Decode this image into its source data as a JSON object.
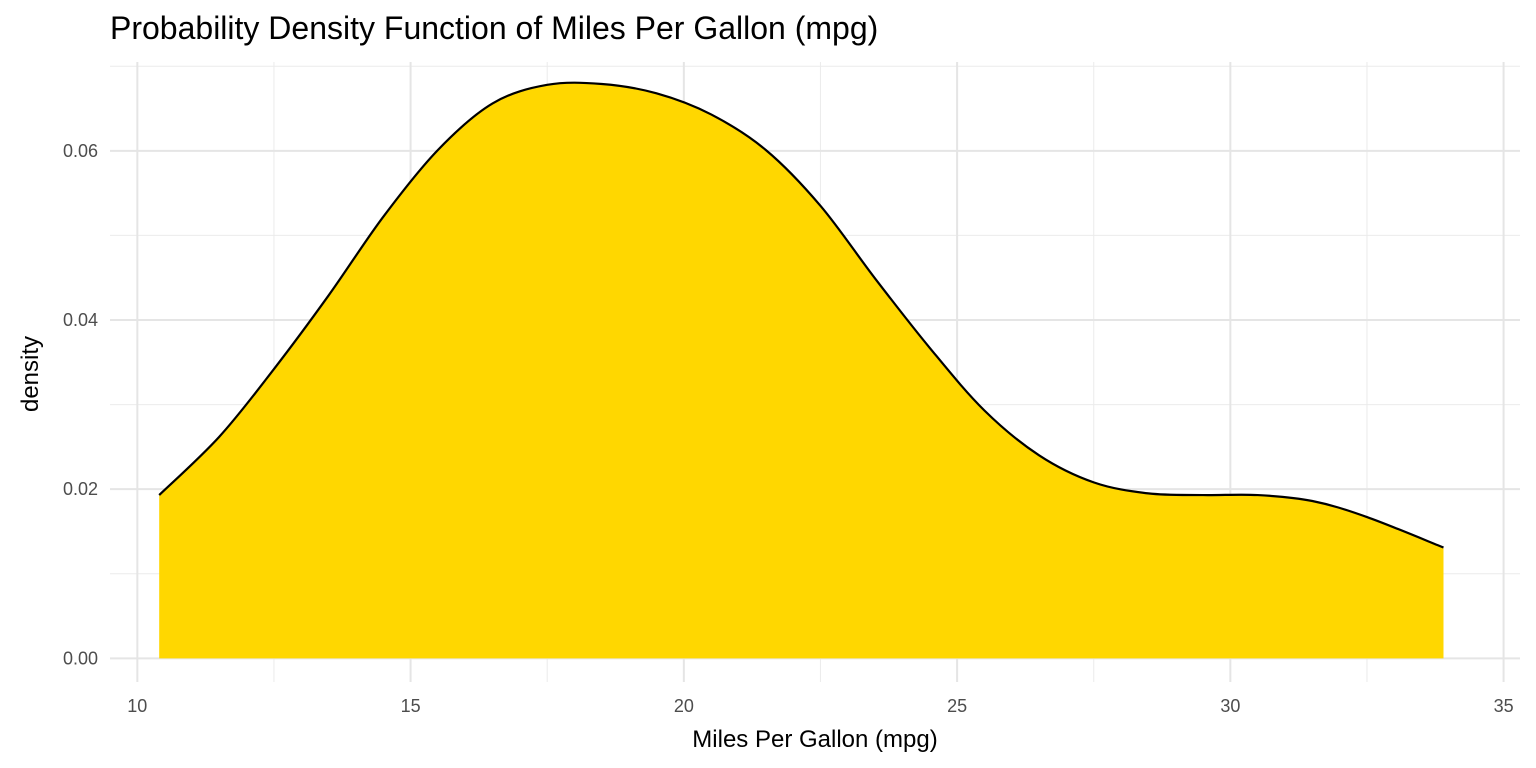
{
  "chart_data": {
    "type": "area",
    "title": "Probability Density Function of Miles Per Gallon (mpg)",
    "xlabel": "Miles Per Gallon (mpg)",
    "ylabel": "density",
    "xlim": [
      9.5,
      35.3
    ],
    "ylim": [
      -0.0028,
      0.0705
    ],
    "x_ticks": [
      10,
      15,
      20,
      25,
      30,
      35
    ],
    "y_ticks": [
      0.0,
      0.02,
      0.04,
      0.06
    ],
    "x_tick_labels": [
      "10",
      "15",
      "20",
      "25",
      "30",
      "35"
    ],
    "y_tick_labels": [
      "0.00",
      "0.02",
      "0.04",
      "0.06"
    ],
    "grid": true,
    "legend": "none",
    "fill_color": "#FFD700",
    "line_color": "#000000",
    "series": [
      {
        "x": [
          10.4,
          11.5,
          12.5,
          13.5,
          14.5,
          15.5,
          16.5,
          17.5,
          18.5,
          19.5,
          20.5,
          21.5,
          22.5,
          23.5,
          24.5,
          25.5,
          26.5,
          27.5,
          28.5,
          29.5,
          30.5,
          31.5,
          32.5,
          33.9
        ],
        "y": [
          0.0193,
          0.0262,
          0.0342,
          0.0429,
          0.0522,
          0.0601,
          0.0656,
          0.0678,
          0.0679,
          0.0668,
          0.0643,
          0.0601,
          0.0535,
          0.0449,
          0.0367,
          0.0293,
          0.024,
          0.0208,
          0.0195,
          0.0193,
          0.0193,
          0.0186,
          0.0167,
          0.0131
        ]
      }
    ]
  }
}
